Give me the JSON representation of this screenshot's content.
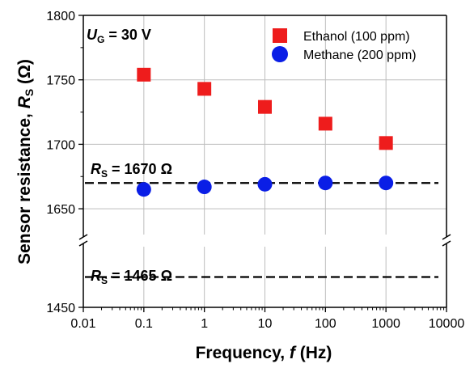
{
  "chart_data": {
    "type": "scatter",
    "xscale": "log",
    "xlim": [
      0.01,
      10000
    ],
    "ylim_upper": [
      1630,
      1800
    ],
    "ylim_lower": [
      1450,
      1480
    ],
    "y_break": true,
    "grid": true,
    "legend_position": "top-right",
    "xlabel_prefix": "Frequency, ",
    "xlabel_var": "f",
    "xlabel_suffix": " (Hz)",
    "ylabel_prefix": "Sensor resistance, ",
    "ylabel_var": "R",
    "ylabel_sub": "S",
    "ylabel_suffix": " (Ω)",
    "x_ticks": [
      "0.01",
      "0.1",
      "1",
      "10",
      "100",
      "1000",
      "10000"
    ],
    "y_ticks_upper": [
      "1650",
      "1700",
      "1750",
      "1800"
    ],
    "y_ticks_lower": [
      "1450"
    ],
    "series": [
      {
        "name": "Ethanol (100 ppm)",
        "marker": "square",
        "color": "#ee1c1c",
        "x": [
          0.1,
          1,
          10,
          100,
          1000
        ],
        "y": [
          1754,
          1743,
          1729,
          1716,
          1701
        ]
      },
      {
        "name": "Methane (200 ppm)",
        "marker": "circle",
        "color": "#0a1ee6",
        "x": [
          0.1,
          1,
          10,
          100,
          1000
        ],
        "y": [
          1665,
          1667,
          1669,
          1670,
          1670
        ]
      }
    ],
    "reference_lines": [
      {
        "value": 1670,
        "label_var": "R",
        "label_sub": "S",
        "label_text": " =  1670 Ω"
      },
      {
        "value": 1465,
        "label_var": "R",
        "label_sub": "S",
        "label_text": " =  1465 Ω"
      }
    ],
    "condition": {
      "var": "U",
      "sub": "G",
      "text": " = 30 V"
    }
  }
}
